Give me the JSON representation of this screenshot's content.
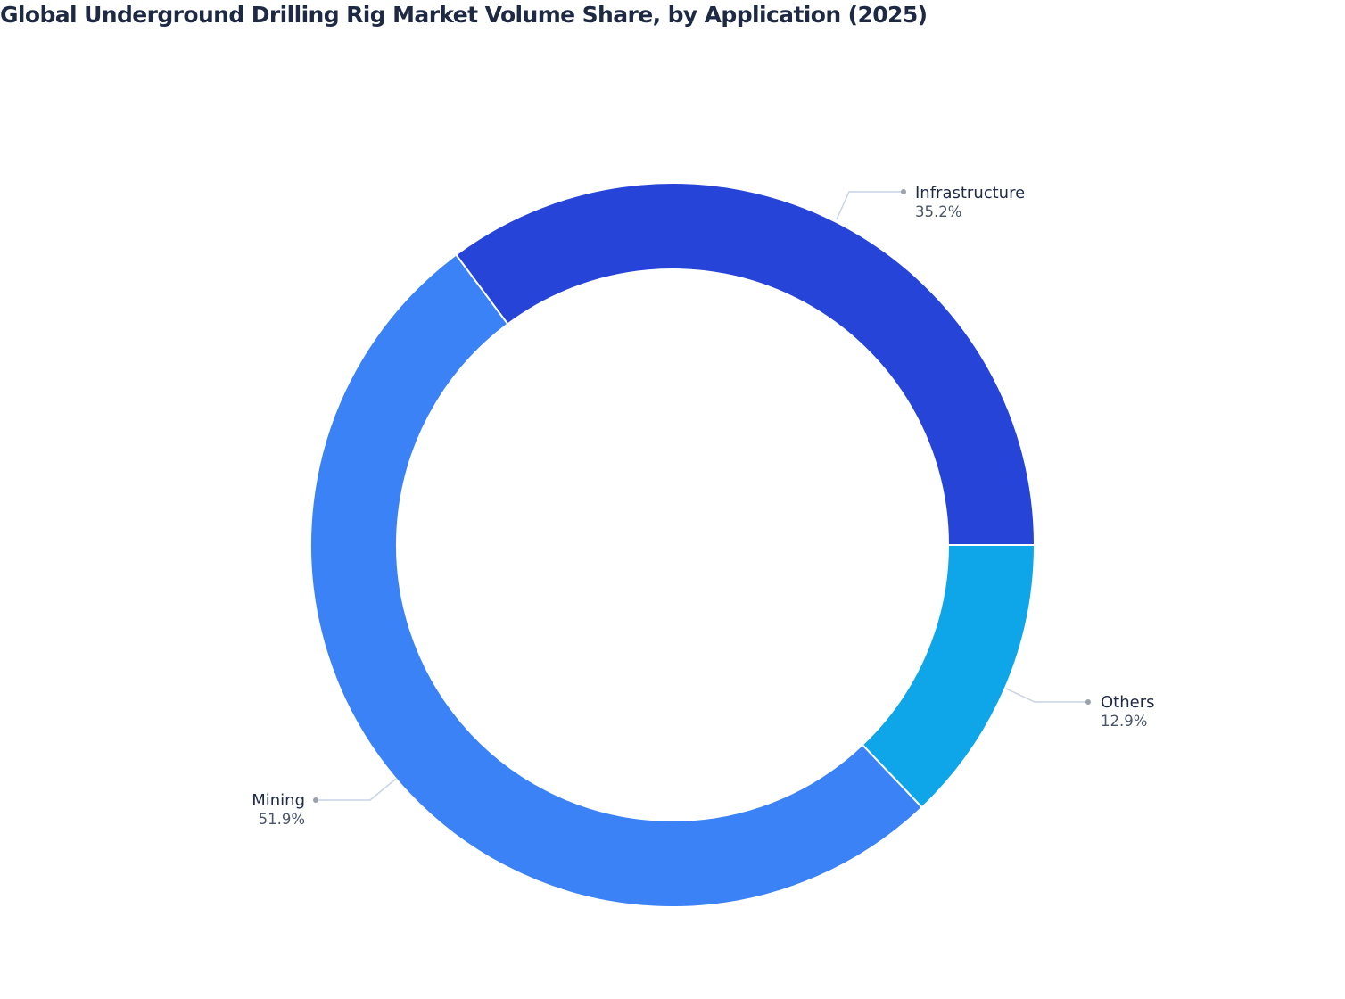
{
  "title": "Global Underground Drilling Rig Market Volume Share, by Application (2025)",
  "chart_data": {
    "type": "pie",
    "subtype": "donut",
    "title": "Global Underground Drilling Rig Market Volume Share, by Application (2025)",
    "categories": [
      "Infrastructure",
      "Mining",
      "Others"
    ],
    "values": [
      35.2,
      51.9,
      12.9
    ],
    "unit": "%",
    "colors": [
      "#2744d9",
      "#3b82f6",
      "#0ea5e9"
    ],
    "labels": [
      {
        "name": "Infrastructure",
        "value": "35.2%"
      },
      {
        "name": "Mining",
        "value": "51.9%"
      },
      {
        "name": "Others",
        "value": "12.9%"
      }
    ],
    "legend": "none (callout labels)"
  }
}
